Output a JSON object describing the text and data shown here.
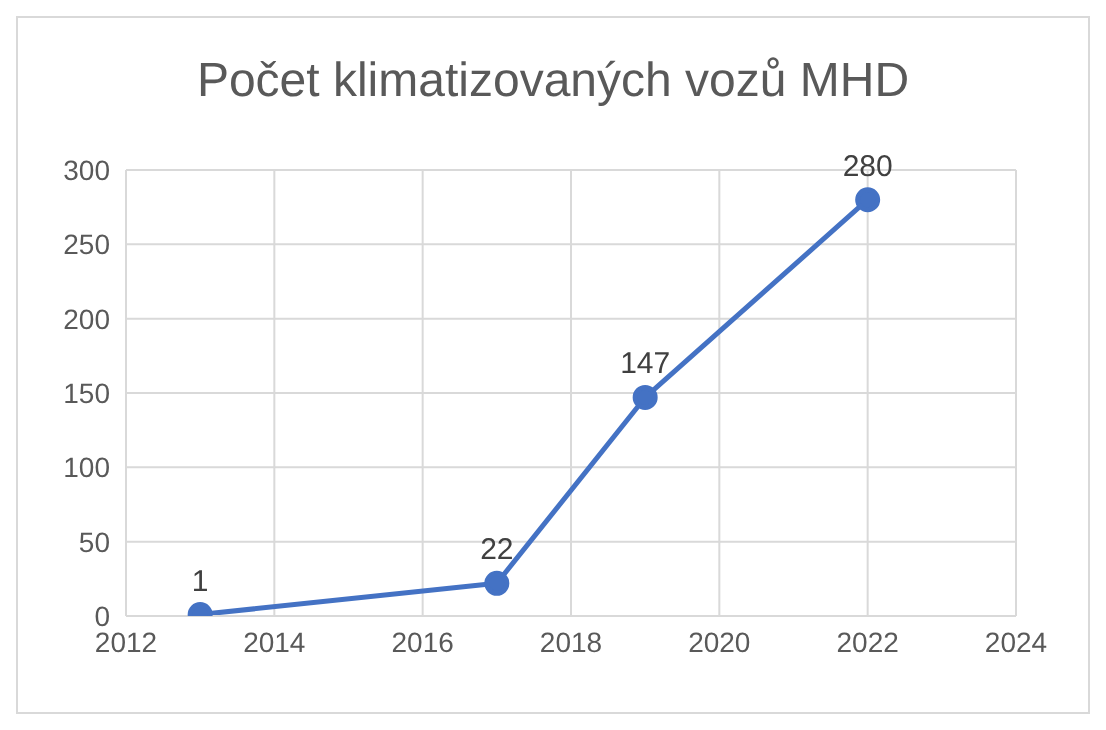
{
  "chart_data": {
    "type": "line",
    "title": "Počet klimatizovaných vozů MHD",
    "x": [
      2013,
      2017,
      2019,
      2022
    ],
    "series": [
      {
        "color": "#4472c4",
        "values": [
          1,
          22,
          147,
          280
        ]
      }
    ],
    "xlim": [
      2012,
      2024
    ],
    "xticks": [
      2012,
      2014,
      2016,
      2018,
      2020,
      2022,
      2024
    ],
    "ylim": [
      0,
      300
    ],
    "yticks": [
      0,
      50,
      100,
      150,
      200,
      250,
      300
    ],
    "grid": true,
    "legend": false,
    "marker": "circle",
    "line_style": "solid",
    "data_labels": true
  }
}
